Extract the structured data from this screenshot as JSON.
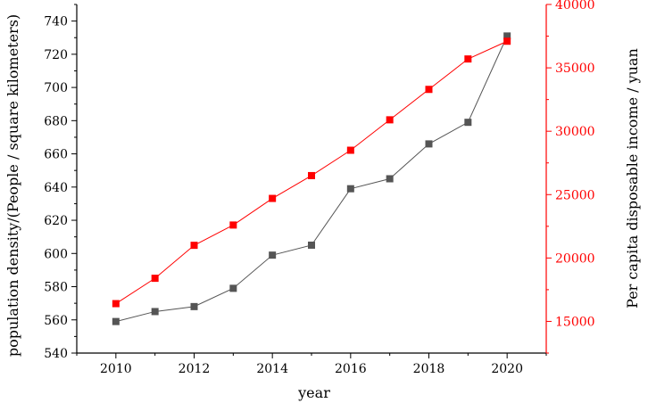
{
  "chart_data": {
    "type": "line",
    "x": [
      2010,
      2011,
      2012,
      2013,
      2014,
      2015,
      2016,
      2017,
      2018,
      2019,
      2020
    ],
    "xlabel": "year",
    "xlim": [
      2009,
      2021
    ],
    "xticks": [
      "2010",
      "2012",
      "2014",
      "2016",
      "2018",
      "2020"
    ],
    "y_left": {
      "label": "population density/(People / square kilometers)",
      "lim": [
        540,
        750
      ],
      "ticks": [
        "540",
        "560",
        "580",
        "600",
        "620",
        "640",
        "660",
        "680",
        "700",
        "720",
        "740"
      ],
      "color": "#000000"
    },
    "y_right": {
      "label": "Per capita disposable income / yuan",
      "lim": [
        12500,
        40000
      ],
      "ticks": [
        "15000",
        "20000",
        "25000",
        "30000",
        "35000",
        "40000"
      ],
      "color": "#ff0000"
    },
    "series": [
      {
        "axis": "left",
        "color": "#555555",
        "marker": "square",
        "values": [
          559,
          565,
          568,
          579,
          599,
          605,
          639,
          645,
          666,
          679,
          731
        ]
      },
      {
        "axis": "right",
        "color": "#ff0000",
        "marker": "square",
        "values": [
          16400,
          18400,
          21000,
          22600,
          24700,
          26500,
          28500,
          30900,
          33300,
          35700,
          37100
        ]
      }
    ],
    "grid": false,
    "legend": "none"
  },
  "colors": {
    "left_series": "#555555",
    "right_series": "#ff0000",
    "axis": "#000000",
    "right_axis": "#ff0000"
  }
}
